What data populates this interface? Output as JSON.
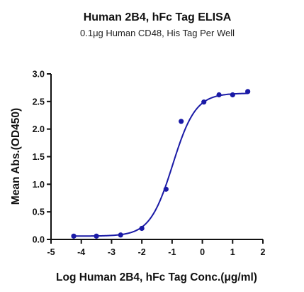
{
  "chart_data": {
    "type": "scatter",
    "title": "Human 2B4, hFc Tag ELISA",
    "subtitle": "0.1μg Human CD48, His Tag Per Well",
    "xlabel": "Log Human 2B4, hFc Tag Conc.(μg/ml)",
    "ylabel": "Mean Abs.(OD450)",
    "xlim": [
      -5,
      2
    ],
    "ylim": [
      0,
      3.0
    ],
    "x_ticks": [
      "-5",
      "-4",
      "-3",
      "-2",
      "-1",
      "0",
      "1",
      "2"
    ],
    "y_ticks": [
      "0.0",
      "0.5",
      "1.0",
      "1.5",
      "2.0",
      "2.5",
      "3.0"
    ],
    "grid": false,
    "series": [
      {
        "color": "#1a1aa6",
        "points": [
          {
            "x": -4.25,
            "y": 0.06
          },
          {
            "x": -3.5,
            "y": 0.06
          },
          {
            "x": -2.7,
            "y": 0.08
          },
          {
            "x": -2.0,
            "y": 0.2
          },
          {
            "x": -1.2,
            "y": 0.91
          },
          {
            "x": -0.7,
            "y": 2.14
          },
          {
            "x": 0.05,
            "y": 2.49
          },
          {
            "x": 0.55,
            "y": 2.62
          },
          {
            "x": 1.0,
            "y": 2.62
          },
          {
            "x": 1.5,
            "y": 2.68
          }
        ],
        "fit": {
          "bottom": 0.06,
          "top": 2.65,
          "logEC50": -0.98,
          "hill": 1.15
        }
      }
    ]
  }
}
